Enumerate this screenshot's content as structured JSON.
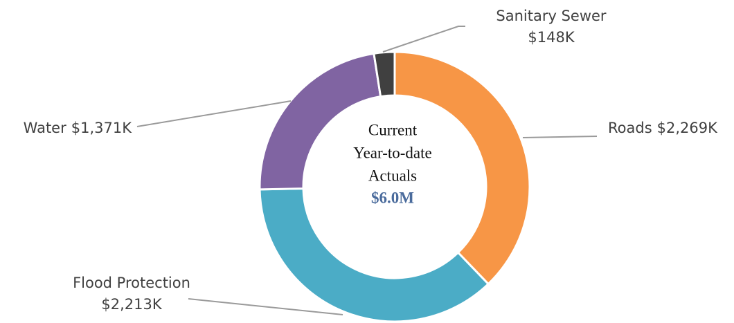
{
  "chart_data": {
    "type": "donut",
    "categories": [
      "Roads",
      "Flood Protection",
      "Water",
      "Sanitary Sewer"
    ],
    "values": [
      2269,
      2213,
      1371,
      148
    ],
    "value_labels": [
      "$2,269K",
      "$2,213K",
      "$1,371K",
      "$148K"
    ],
    "colors": [
      "#f79646",
      "#4bacc6",
      "#8064a2",
      "#404040"
    ],
    "center_text": [
      "Current",
      "Year-to-date",
      "Actuals"
    ],
    "center_value": "$6.0M"
  }
}
